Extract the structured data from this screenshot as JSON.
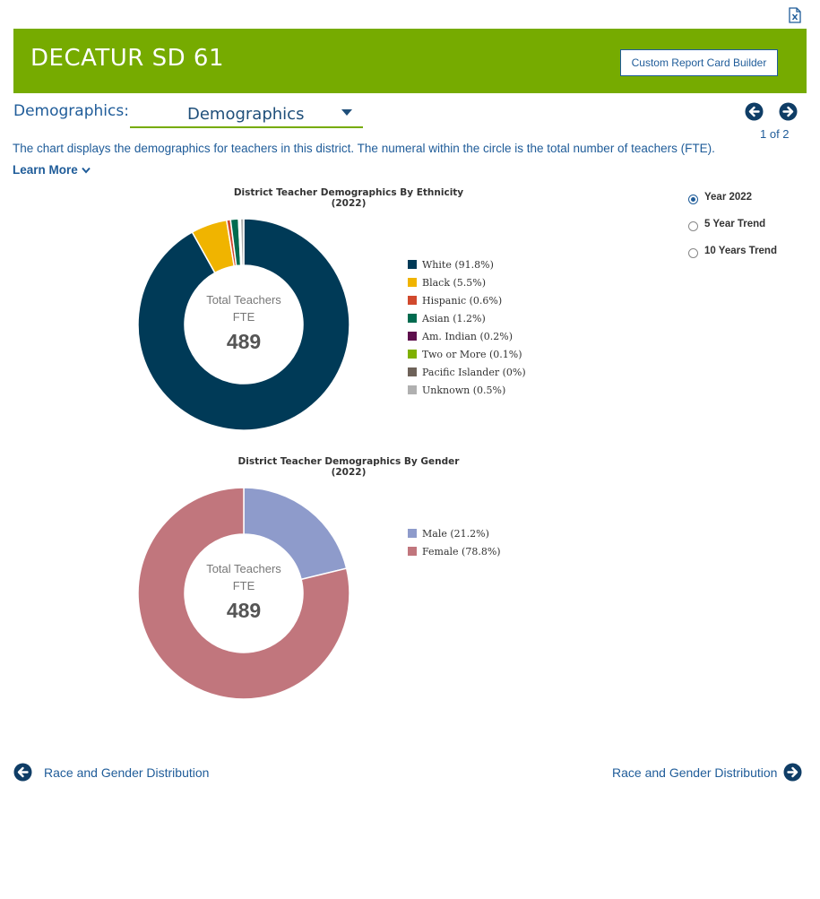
{
  "header": {
    "district_name": "DECATUR SD 61",
    "custom_builder_label": "Custom Report Card Builder",
    "excel_icon": "excel-file-icon",
    "banner_color": "#76ab00"
  },
  "selector": {
    "label": "Demographics:",
    "value": "Demographics",
    "page_indicator": "1 of 2"
  },
  "description": {
    "text": "The chart displays the demographics for teachers in this district. The numeral within the circle is the total number of teachers (FTE).",
    "learn_more": "Learn More"
  },
  "time_options": [
    {
      "label": "Year 2022",
      "selected": true
    },
    {
      "label": "5 Year Trend",
      "selected": false
    },
    {
      "label": "10 Years Trend",
      "selected": false
    }
  ],
  "chart_data": [
    {
      "type": "pie",
      "title": "District Teacher Demographics By Ethnicity (2022)",
      "center_label_line1": "Total Teachers",
      "center_label_line2": "FTE",
      "center_value": "489",
      "series": [
        {
          "name": "White",
          "value": 91.8,
          "legend": "White (91.8%)",
          "color": "#003a57"
        },
        {
          "name": "Black",
          "value": 5.5,
          "legend": "Black (5.5%)",
          "color": "#f0b400"
        },
        {
          "name": "Hispanic",
          "value": 0.6,
          "legend": "Hispanic (0.6%)",
          "color": "#d1492d"
        },
        {
          "name": "Asian",
          "value": 1.2,
          "legend": "Asian (1.2%)",
          "color": "#006b4f"
        },
        {
          "name": "Am. Indian",
          "value": 0.2,
          "legend": "Am. Indian (0.2%)",
          "color": "#5e0f4d"
        },
        {
          "name": "Two or More",
          "value": 0.1,
          "legend": "Two or More (0.1%)",
          "color": "#7fb000"
        },
        {
          "name": "Pacific Islander",
          "value": 0,
          "legend": "Pacific Islander (0%)",
          "color": "#6e6259"
        },
        {
          "name": "Unknown",
          "value": 0.5,
          "legend": "Unknown (0.5%)",
          "color": "#b0b0b0"
        }
      ]
    },
    {
      "type": "pie",
      "title": "District Teacher Demographics By Gender (2022)",
      "center_label_line1": "Total Teachers",
      "center_label_line2": "FTE",
      "center_value": "489",
      "series": [
        {
          "name": "Male",
          "value": 21.2,
          "legend": "Male (21.2%)",
          "color": "#8e9bcb"
        },
        {
          "name": "Female",
          "value": 78.8,
          "legend": "Female (78.8%)",
          "color": "#c1767d"
        }
      ]
    }
  ],
  "bottom_nav": {
    "prev_label": "Race and Gender Distribution",
    "next_label": "Race and Gender Distribution"
  }
}
